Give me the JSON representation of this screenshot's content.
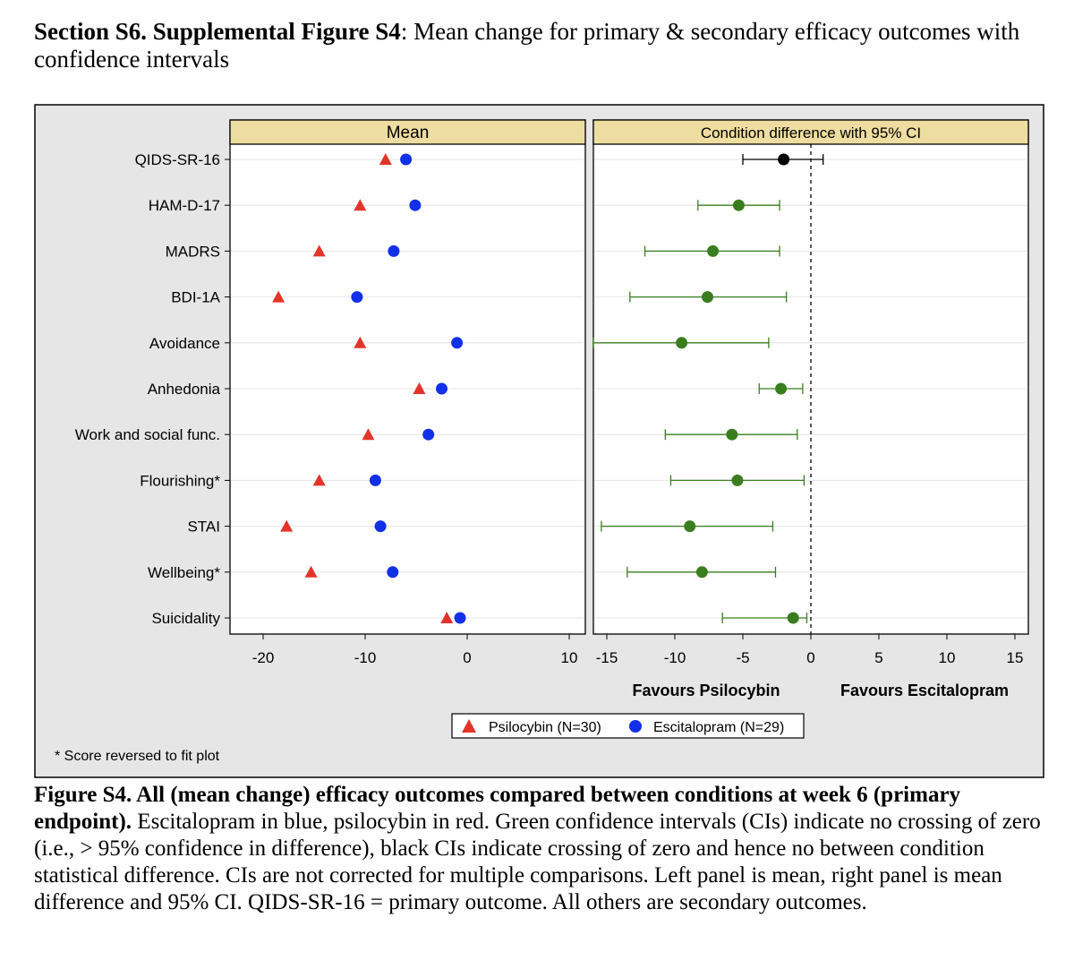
{
  "heading": {
    "bold": "Section S6. Supplemental Figure S4",
    "rest": ": Mean change for primary & secondary efficacy outcomes with confidence intervals"
  },
  "caption": {
    "bold": "Figure S4. All (mean change) efficacy outcomes compared between conditions at week 6 (primary endpoint).",
    "rest": " Escitalopram in blue, psilocybin in red. Green confidence intervals (CIs) indicate no crossing of zero (i.e., > 95% confidence in difference), black CIs indicate crossing of zero and hence no between condition statistical difference. CIs are not corrected for multiple comparisons. Left panel is mean, right panel is mean difference and 95% CI. QIDS-SR-16 = primary outcome. All others are secondary outcomes."
  },
  "footnote": "* Score reversed to fit plot",
  "colors": {
    "psilocybin": "#e3342a",
    "escitalopram": "#1230e8",
    "ci_significant": "#3a7d1f",
    "ci_nonsignificant": "#000000",
    "panel_header": "#eedda0",
    "frame_background": "#e6e6e6"
  },
  "chart_data": [
    {
      "type": "scatter",
      "panel_title": "Mean",
      "categories": [
        "QIDS-SR-16",
        "HAM-D-17",
        "MADRS",
        "BDI-1A",
        "Avoidance",
        "Anhedonia",
        "Work and social func.",
        "Flourishing*",
        "STAI",
        "Wellbeing*",
        "Suicidality"
      ],
      "series": [
        {
          "name": "Psilocybin (N=30)",
          "marker": "triangle",
          "values": [
            -8.0,
            -10.5,
            -14.5,
            -18.5,
            -10.5,
            -4.7,
            -9.7,
            -14.5,
            -17.7,
            -15.3,
            -2.0
          ]
        },
        {
          "name": "Escitalopram (N=29)",
          "marker": "circle",
          "values": [
            -6.0,
            -5.1,
            -7.2,
            -10.8,
            -1.0,
            -2.5,
            -3.8,
            -9.0,
            -8.5,
            -7.3,
            -0.7
          ]
        }
      ],
      "xlim": [
        -24,
        12
      ],
      "xticks": [
        "-20",
        "-10",
        "0",
        "10"
      ],
      "xtick_values": [
        -20,
        -10,
        0,
        10
      ],
      "grid": "horizontal"
    },
    {
      "type": "scatter",
      "panel_title": "Condition difference with 95% CI",
      "categories": [
        "QIDS-SR-16",
        "HAM-D-17",
        "MADRS",
        "BDI-1A",
        "Avoidance",
        "Anhedonia",
        "Work and social func.",
        "Flourishing*",
        "STAI",
        "Wellbeing*",
        "Suicidality"
      ],
      "series": [
        {
          "estimate": [
            -2.0,
            -5.3,
            -7.2,
            -7.6,
            -9.5,
            -2.2,
            -5.8,
            -5.4,
            -8.9,
            -8.0,
            -1.3
          ],
          "ci_lower": [
            -5.0,
            -8.3,
            -12.2,
            -13.3,
            -16.0,
            -3.8,
            -10.7,
            -10.3,
            -15.4,
            -13.5,
            -6.5
          ],
          "ci_upper": [
            0.9,
            -2.3,
            -2.3,
            -1.8,
            -3.1,
            -0.6,
            -1.0,
            -0.5,
            -2.8,
            -2.6,
            -0.3
          ],
          "significant": [
            false,
            true,
            true,
            true,
            true,
            true,
            true,
            true,
            true,
            true,
            true
          ]
        }
      ],
      "xlim": [
        -16,
        16
      ],
      "xticks": [
        "-15",
        "-10",
        "-5",
        "0",
        "5",
        "10",
        "15"
      ],
      "xtick_values": [
        -15,
        -10,
        -5,
        0,
        5,
        10,
        15
      ],
      "reference_line": 0,
      "favours_left": "Favours Psilocybin",
      "favours_right": "Favours Escitalopram",
      "grid": "horizontal"
    }
  ],
  "legend": {
    "placement": "bottom",
    "items": [
      "Psilocybin (N=30)",
      "Escitalopram (N=29)"
    ]
  }
}
